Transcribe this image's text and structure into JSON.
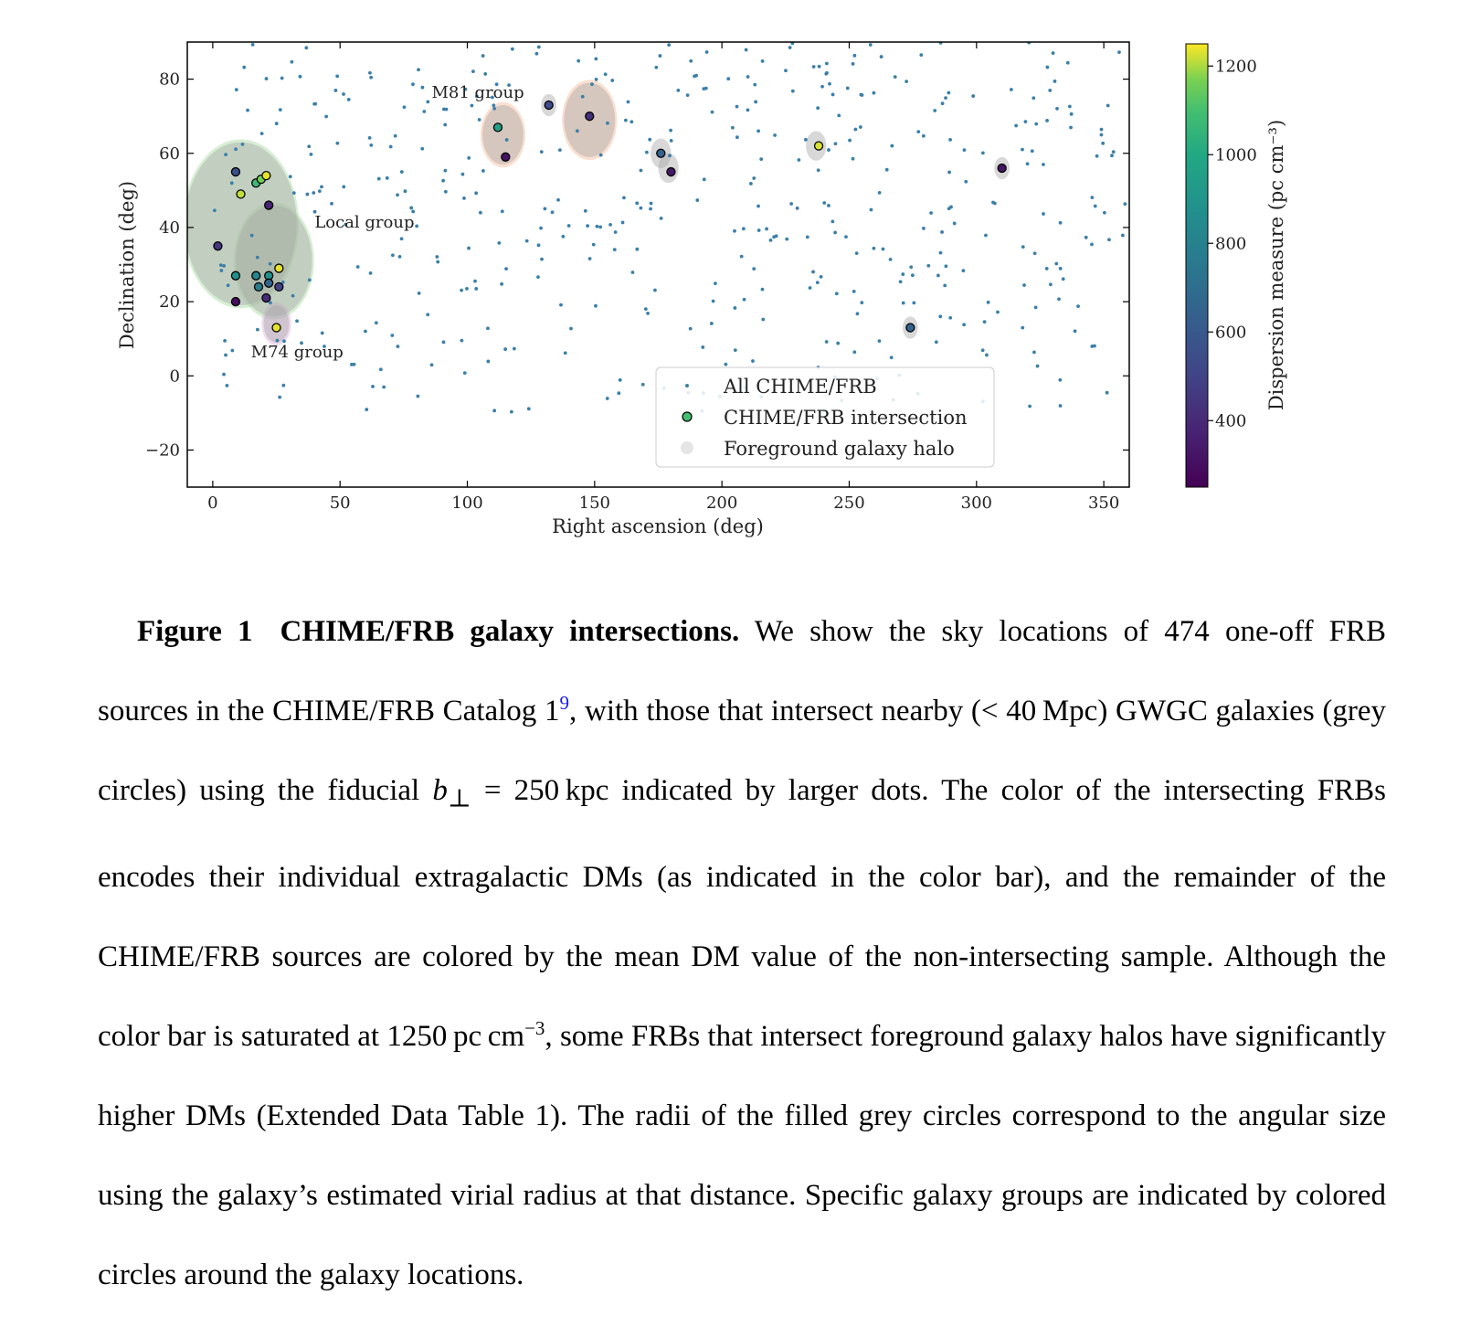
{
  "chart_data": {
    "type": "scatter",
    "xlabel": "Right ascension (deg)",
    "ylabel": "Declination (deg)",
    "xlim": [
      -10,
      360
    ],
    "ylim": [
      -30,
      90
    ],
    "xticks": [
      0,
      50,
      100,
      150,
      200,
      250,
      300,
      350
    ],
    "yticks": [
      -20,
      0,
      20,
      40,
      60,
      80
    ],
    "legend_position": "lower-right",
    "legend": [
      "All CHIME/FRB",
      "CHIME/FRB intersection",
      "Foreground galaxy halo"
    ],
    "colorbar": {
      "label": "Dispersion measure (pc cm⁻³)",
      "range": [
        250,
        1250
      ],
      "ticks": [
        400,
        600,
        800,
        1000,
        1200
      ],
      "colormap": "viridis"
    },
    "annotations": [
      {
        "text": "M81 group",
        "x": 86,
        "y": 75,
        "color": "#ef8a2c"
      },
      {
        "text": "Local group",
        "x": 40,
        "y": 40,
        "color": "#3da03d"
      },
      {
        "text": "M74 group",
        "x": 15,
        "y": 5,
        "color": "#a040a0"
      }
    ],
    "group_circles": [
      {
        "name": "M81 group",
        "color": "#f5b896",
        "members": [
          {
            "x": 114,
            "y": 65,
            "r": 8
          },
          {
            "x": 148,
            "y": 69,
            "r": 10
          }
        ]
      },
      {
        "name": "Local group",
        "color": "#a7d9a0",
        "members": [
          {
            "x": 11,
            "y": 41,
            "r": 22
          },
          {
            "x": 24,
            "y": 31,
            "r": 15
          }
        ]
      },
      {
        "name": "M74 group",
        "color": "#d9b0d9",
        "members": [
          {
            "x": 25,
            "y": 14,
            "r": 5
          }
        ]
      }
    ],
    "halos": [
      {
        "x": 11,
        "y": 41,
        "r": 22
      },
      {
        "x": 24,
        "y": 31,
        "r": 15
      },
      {
        "x": 25,
        "y": 14,
        "r": 5
      },
      {
        "x": 114,
        "y": 65,
        "r": 8
      },
      {
        "x": 148,
        "y": 69,
        "r": 10
      },
      {
        "x": 132,
        "y": 73,
        "r": 3
      },
      {
        "x": 176,
        "y": 60,
        "r": 4
      },
      {
        "x": 179,
        "y": 56,
        "r": 4
      },
      {
        "x": 237,
        "y": 62,
        "r": 4
      },
      {
        "x": 274,
        "y": 13,
        "r": 3
      },
      {
        "x": 310,
        "y": 56,
        "r": 3
      }
    ],
    "intersections": [
      {
        "ra": 9,
        "dec": 55,
        "dm": 520
      },
      {
        "ra": 11,
        "dec": 49,
        "dm": 1200
      },
      {
        "ra": 17,
        "dec": 52,
        "dm": 1000
      },
      {
        "ra": 19,
        "dec": 53,
        "dm": 1120
      },
      {
        "ra": 21,
        "dec": 54,
        "dm": 1230
      },
      {
        "ra": 22,
        "dec": 46,
        "dm": 360
      },
      {
        "ra": 2,
        "dec": 35,
        "dm": 420
      },
      {
        "ra": 9,
        "dec": 27,
        "dm": 800
      },
      {
        "ra": 17,
        "dec": 27,
        "dm": 760
      },
      {
        "ra": 22,
        "dec": 27,
        "dm": 800
      },
      {
        "ra": 26,
        "dec": 29,
        "dm": 1230
      },
      {
        "ra": 18,
        "dec": 24,
        "dm": 720
      },
      {
        "ra": 22,
        "dec": 25,
        "dm": 600
      },
      {
        "ra": 26,
        "dec": 24,
        "dm": 460
      },
      {
        "ra": 21,
        "dec": 21,
        "dm": 390
      },
      {
        "ra": 9,
        "dec": 20,
        "dm": 290
      },
      {
        "ra": 25,
        "dec": 13,
        "dm": 1230
      },
      {
        "ra": 112,
        "dec": 67,
        "dm": 880
      },
      {
        "ra": 115,
        "dec": 59,
        "dm": 300
      },
      {
        "ra": 132,
        "dec": 73,
        "dm": 500
      },
      {
        "ra": 148,
        "dec": 70,
        "dm": 400
      },
      {
        "ra": 176,
        "dec": 60,
        "dm": 600
      },
      {
        "ra": 180,
        "dec": 55,
        "dm": 320
      },
      {
        "ra": 238,
        "dec": 62,
        "dm": 1220
      },
      {
        "ra": 274,
        "dec": 13,
        "dm": 600
      },
      {
        "ra": 310,
        "dec": 56,
        "dm": 310
      }
    ]
  },
  "caption": {
    "label": "Figure 1",
    "title": "CHIME/FRB galaxy intersections.",
    "part1": "We show the sky locations of 474 one-off FRB sources in the CHIME/FRB Catalog 1",
    "ref": "9",
    "part2": ", with those that intersect nearby (< 40 Mpc) GWGC galaxies (grey circles) using the fiducial ",
    "math_b": "b",
    "math_sub": "⊥",
    "part3": " = 250 kpc indicated by larger dots. The color of the intersecting FRBs encodes their individual extragalactic DMs (as indicated in the color bar), and the remainder of the CHIME/FRB sources are colored by the mean DM value of the non-intersecting sample. Although the color bar is saturated at 1250 pc cm",
    "sup": "−3",
    "part4": ", some FRBs that intersect foreground galaxy halos have significantly higher DMs (Extended Data Table 1). The radii of the filled grey circles correspond to the angular size using the galaxy’s estimated virial radius at that distance. Specific galaxy groups are indicated by colored circles around the galaxy locations."
  },
  "colors": {
    "background_dots": "#3b7fa8",
    "halo_fill": "#a9a9a9",
    "citation": "#1a1aee"
  }
}
